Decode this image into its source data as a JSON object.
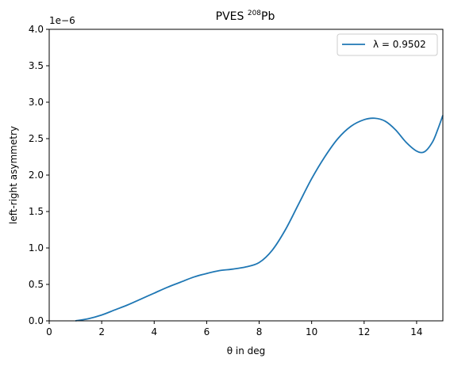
{
  "chart_data": {
    "type": "line",
    "title": "PVES",
    "title_sup": "208",
    "title_suffix": "Pb",
    "xlabel": "θ in deg",
    "ylabel": "left-right asymmetry",
    "y_offset_label": "1e−6",
    "xlim": [
      0,
      15
    ],
    "ylim": [
      0,
      4.0
    ],
    "y_scale": 1e-06,
    "x_ticks": [
      0,
      2,
      4,
      6,
      8,
      10,
      12,
      14
    ],
    "x_tick_labels": [
      "0",
      "2",
      "4",
      "6",
      "8",
      "10",
      "12",
      "14"
    ],
    "y_ticks": [
      0.0,
      0.5,
      1.0,
      1.5,
      2.0,
      2.5,
      3.0,
      3.5,
      4.0
    ],
    "y_tick_labels": [
      "0.0",
      "0.5",
      "1.0",
      "1.5",
      "2.0",
      "2.5",
      "3.0",
      "3.5",
      "4.0"
    ],
    "grid": false,
    "legend_position": "top-right",
    "series": [
      {
        "name": "λ = 0.9502",
        "color": "#1f77b4",
        "x": [
          1.0,
          1.5,
          2.0,
          2.5,
          3.0,
          3.5,
          4.0,
          4.5,
          5.0,
          5.5,
          6.0,
          6.5,
          7.0,
          7.5,
          8.0,
          8.5,
          9.0,
          9.5,
          10.0,
          10.5,
          11.0,
          11.5,
          12.0,
          12.4,
          12.8,
          13.2,
          13.6,
          14.0,
          14.3,
          14.6,
          14.8,
          15.0
        ],
        "values": [
          0.0,
          0.03,
          0.08,
          0.15,
          0.22,
          0.3,
          0.38,
          0.46,
          0.53,
          0.6,
          0.65,
          0.69,
          0.71,
          0.74,
          0.8,
          0.97,
          1.25,
          1.6,
          1.95,
          2.25,
          2.5,
          2.67,
          2.76,
          2.78,
          2.74,
          2.62,
          2.45,
          2.33,
          2.32,
          2.45,
          2.62,
          2.82
        ]
      }
    ]
  }
}
